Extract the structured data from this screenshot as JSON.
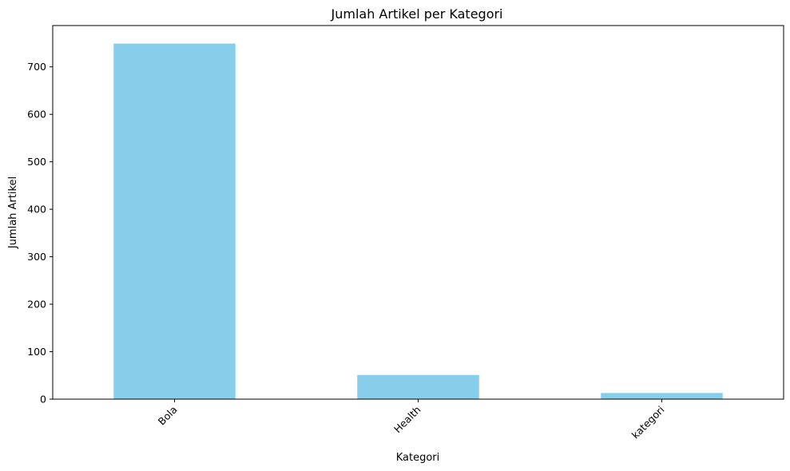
{
  "chart_data": {
    "type": "bar",
    "title": "Jumlah Artikel per Kategori",
    "xlabel": "Kategori",
    "ylabel": "Jumlah Artikel",
    "categories": [
      "Bola",
      "Health",
      "kategori"
    ],
    "values": [
      749,
      51,
      13
    ],
    "ylim": [
      0,
      787
    ],
    "yticks": [
      0,
      100,
      200,
      300,
      400,
      500,
      600,
      700
    ],
    "xtick_rotation": 45,
    "bar_color": "#87ceeb",
    "grid": false,
    "legend": "none"
  }
}
